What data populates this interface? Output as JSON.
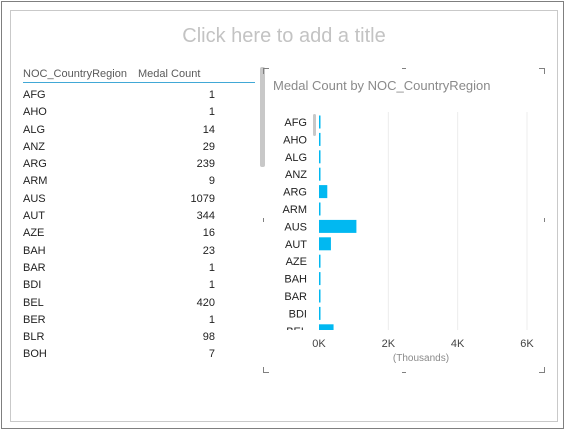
{
  "report": {
    "title_placeholder": "Click here to add a title"
  },
  "table": {
    "columns": [
      "NOC_CountryRegion",
      "Medal Count"
    ],
    "rows": [
      [
        "AFG",
        "1"
      ],
      [
        "AHO",
        "1"
      ],
      [
        "ALG",
        "14"
      ],
      [
        "ANZ",
        "29"
      ],
      [
        "ARG",
        "239"
      ],
      [
        "ARM",
        "9"
      ],
      [
        "AUS",
        "1079"
      ],
      [
        "AUT",
        "344"
      ],
      [
        "AZE",
        "16"
      ],
      [
        "BAH",
        "23"
      ],
      [
        "BAR",
        "1"
      ],
      [
        "BDI",
        "1"
      ],
      [
        "BEL",
        "420"
      ],
      [
        "BER",
        "1"
      ],
      [
        "BLR",
        "98"
      ],
      [
        "BOH",
        "7"
      ]
    ]
  },
  "chart_data": {
    "type": "bar",
    "orientation": "horizontal",
    "title": "Medal Count by NOC_CountryRegion",
    "xlabel": "(Thousands)",
    "ylabel": "",
    "categories": [
      "AFG",
      "AHO",
      "ALG",
      "ANZ",
      "ARG",
      "ARM",
      "AUS",
      "AUT",
      "AZE",
      "BAH",
      "BAR",
      "BDI",
      "BEL"
    ],
    "values": [
      1,
      1,
      14,
      29,
      239,
      9,
      1079,
      344,
      16,
      23,
      1,
      1,
      420
    ],
    "xlim": [
      0,
      6000
    ],
    "x_ticks": [
      0,
      2000,
      4000,
      6000
    ],
    "x_tick_labels": [
      "0K",
      "2K",
      "4K",
      "6K"
    ],
    "gridlines": true,
    "bar_color": "#01b8f1"
  },
  "colors": {
    "accent": "#41a8d6",
    "bar": "#01b8f1"
  }
}
